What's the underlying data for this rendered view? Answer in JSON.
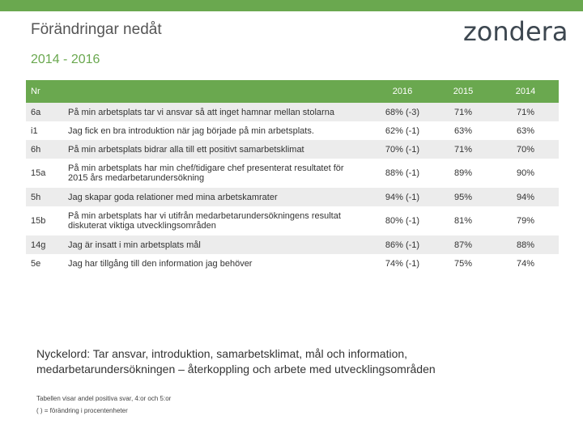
{
  "header": {
    "title": "Förändringar nedåt",
    "subtitle": "2014 - 2016",
    "logo_text": "zondera"
  },
  "colors": {
    "accent": "#6aa84f",
    "row_shade": "#ececec"
  },
  "table": {
    "columns": [
      "Nr",
      "2016",
      "2015",
      "2014"
    ],
    "rows": [
      {
        "nr": "6a",
        "statement": "På min arbetsplats tar vi ansvar så att inget hamnar mellan stolarna",
        "y2016": "68% (-3)",
        "y2015": "71%",
        "y2014": "71%"
      },
      {
        "nr": "i1",
        "statement": "Jag fick en bra introduktion när jag började på min arbetsplats.",
        "y2016": "62% (-1)",
        "y2015": "63%",
        "y2014": "63%"
      },
      {
        "nr": "6h",
        "statement": "På min arbetsplats bidrar alla till ett positivt samarbetsklimat",
        "y2016": "70% (-1)",
        "y2015": "71%",
        "y2014": "70%"
      },
      {
        "nr": "15a",
        "statement": "På min arbetsplats har min chef/tidigare chef presenterat resultatet för 2015 års medarbetarundersökning",
        "y2016": "88% (-1)",
        "y2015": "89%",
        "y2014": "90%"
      },
      {
        "nr": "5h",
        "statement": "Jag skapar goda relationer med mina arbetskamrater",
        "y2016": "94% (-1)",
        "y2015": "95%",
        "y2014": "94%"
      },
      {
        "nr": "15b",
        "statement": "På min arbetsplats har vi utifrån medarbetarundersökningens resultat diskuterat viktiga utvecklingsområden",
        "y2016": "80% (-1)",
        "y2015": "81%",
        "y2014": "79%"
      },
      {
        "nr": "14g",
        "statement": "Jag är insatt i min arbetsplats mål",
        "y2016": "86% (-1)",
        "y2015": "87%",
        "y2014": "88%"
      },
      {
        "nr": "5e",
        "statement": "Jag har tillgång till den information jag behöver",
        "y2016": "74% (-1)",
        "y2015": "75%",
        "y2014": "74%"
      }
    ]
  },
  "keywords": {
    "label": "Nyckelord",
    "text": ": Tar ansvar, introduktion, samarbetsklimat, mål och information, medarbetarundersökningen – återkoppling och arbete med utvecklingsområden"
  },
  "footnotes": {
    "line1": "Tabellen visar andel positiva svar, 4:or och 5:or",
    "line2": "( ) = förändring i procentenheter"
  }
}
